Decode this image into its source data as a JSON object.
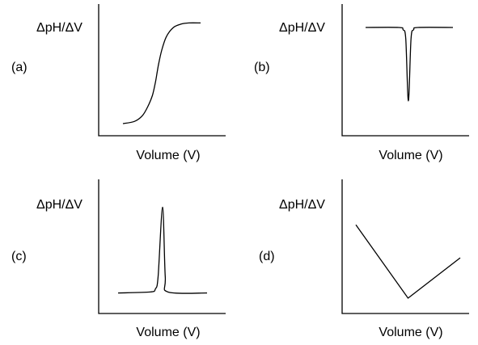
{
  "chart_data": [
    {
      "panel": "(a)",
      "type": "line",
      "ylabel": "ΔpH/ΔV",
      "xlabel": "Volume (V)",
      "shape": "sigmoid",
      "x": [
        0.0,
        0.15,
        0.25,
        0.32,
        0.38,
        0.42,
        0.44,
        0.46,
        0.5,
        0.56,
        0.65,
        0.75,
        0.85,
        1.0
      ],
      "y": [
        0.05,
        0.07,
        0.12,
        0.2,
        0.3,
        0.42,
        0.5,
        0.58,
        0.7,
        0.82,
        0.9,
        0.93,
        0.94,
        0.94
      ],
      "xlim": [
        0,
        1
      ],
      "ylim": [
        0,
        1
      ]
    },
    {
      "panel": "(b)",
      "type": "line",
      "ylabel": "ΔpH/ΔV",
      "xlabel": "Volume (V)",
      "shape": "inverted-peak",
      "x": [
        0.0,
        0.38,
        0.43,
        0.46,
        0.49,
        0.52,
        0.55,
        0.6,
        1.0
      ],
      "y": [
        0.9,
        0.9,
        0.88,
        0.8,
        0.25,
        0.8,
        0.88,
        0.9,
        0.9
      ],
      "xlim": [
        0,
        1
      ],
      "ylim": [
        0,
        1
      ]
    },
    {
      "panel": "(c)",
      "type": "line",
      "ylabel": "ΔpH/ΔV",
      "xlabel": "Volume (V)",
      "shape": "peak",
      "x": [
        0.0,
        0.36,
        0.42,
        0.45,
        0.5,
        0.53,
        0.56,
        1.0
      ],
      "y": [
        0.12,
        0.13,
        0.16,
        0.28,
        0.95,
        0.28,
        0.13,
        0.12
      ],
      "xlim": [
        0,
        1
      ],
      "ylim": [
        0,
        1
      ]
    },
    {
      "panel": "(d)",
      "type": "line",
      "ylabel": "ΔpH/ΔV",
      "xlabel": "Volume (V)",
      "shape": "v",
      "x": [
        0.0,
        0.5,
        1.0
      ],
      "y": [
        0.78,
        0.07,
        0.46
      ],
      "xlim": [
        0,
        1
      ],
      "ylim": [
        0,
        1
      ]
    }
  ]
}
